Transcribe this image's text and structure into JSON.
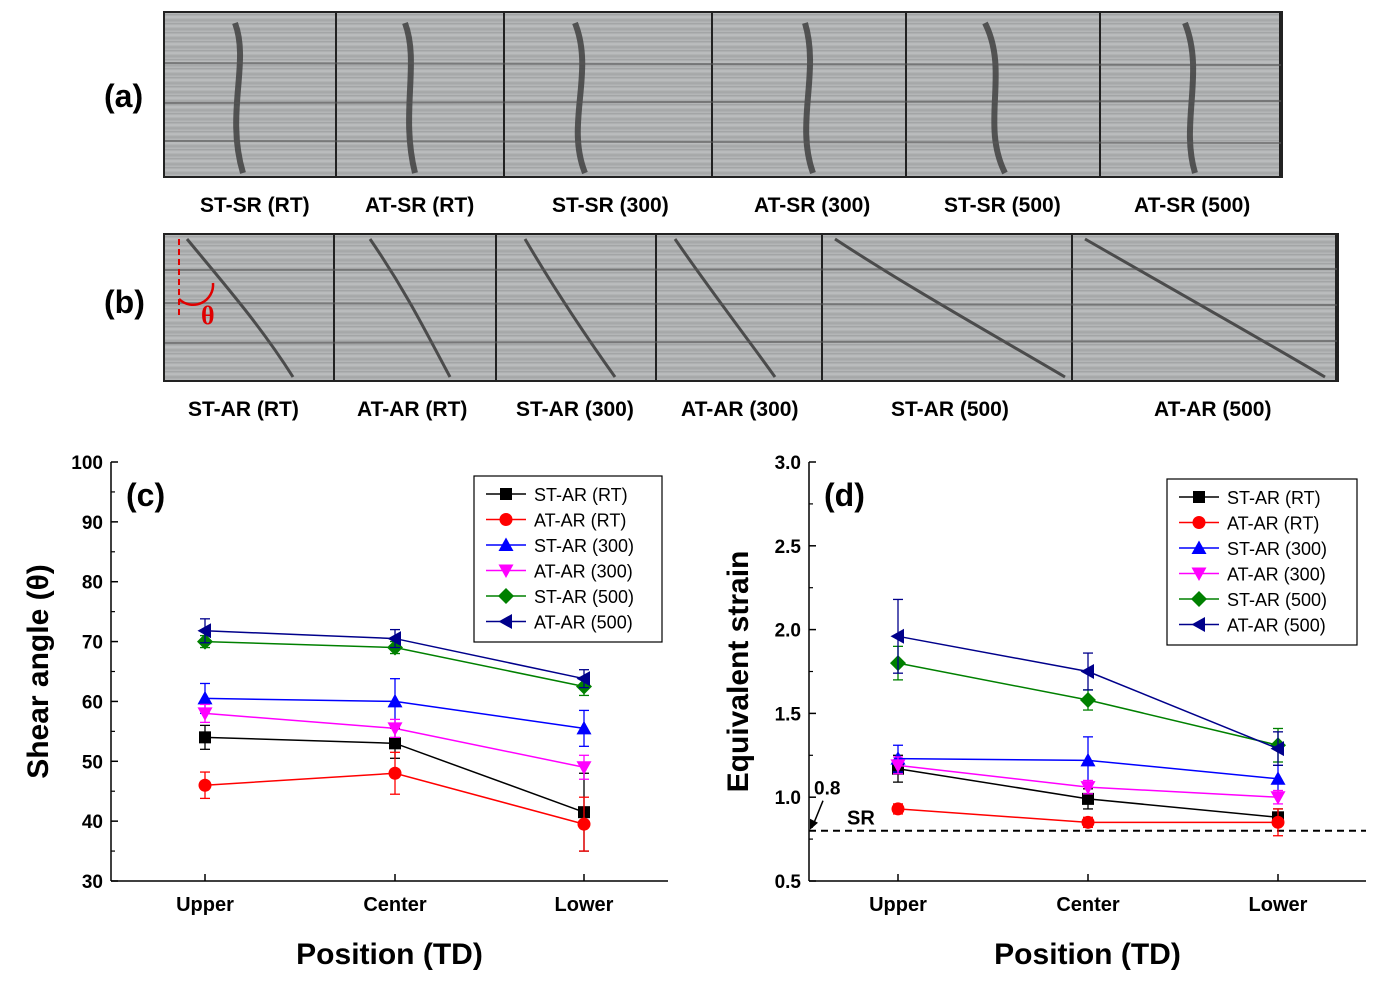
{
  "panel_a": {
    "label": "(a)",
    "captions": [
      "ST-SR (RT)",
      "AT-SR (RT)",
      "ST-SR (300)",
      "AT-SR (300)",
      "ST-SR (500)",
      "AT-SR (500)"
    ]
  },
  "panel_b": {
    "label": "(b)",
    "theta": "θ",
    "captions": [
      "ST-AR (RT)",
      "AT-AR (RT)",
      "ST-AR (300)",
      "AT-AR (300)",
      "ST-AR (500)",
      "AT-AR (500)"
    ]
  },
  "chart_data": [
    {
      "type": "line",
      "panel_label": "(c)",
      "xlabel": "Position (TD)",
      "ylabel": "Shear angle (θ)",
      "categories": [
        "Upper",
        "Center",
        "Lower"
      ],
      "ylim": [
        30,
        100
      ],
      "yticks": [
        30,
        40,
        50,
        60,
        70,
        80,
        90,
        100
      ],
      "series": [
        {
          "name": "ST-AR (RT)",
          "color": "#000000",
          "marker": "square",
          "values": [
            54.0,
            53.0,
            41.5
          ],
          "errors": [
            2.0,
            2.5,
            6.5
          ]
        },
        {
          "name": "AT-AR (RT)",
          "color": "#ff0000",
          "marker": "circle",
          "values": [
            46.0,
            48.0,
            39.5
          ],
          "errors": [
            2.2,
            3.5,
            4.5
          ]
        },
        {
          "name": "ST-AR (300)",
          "color": "#0000ff",
          "marker": "triangle-up",
          "values": [
            60.5,
            60.0,
            55.5
          ],
          "errors": [
            2.5,
            3.8,
            3.0
          ]
        },
        {
          "name": "AT-AR (300)",
          "color": "#ff00ff",
          "marker": "triangle-down",
          "values": [
            58.0,
            55.5,
            49.0
          ],
          "errors": [
            1.5,
            1.5,
            2.0
          ]
        },
        {
          "name": "ST-AR (500)",
          "color": "#008000",
          "marker": "diamond",
          "values": [
            70.0,
            69.0,
            62.5
          ],
          "errors": [
            1.0,
            1.0,
            1.5
          ]
        },
        {
          "name": "AT-AR (500)",
          "color": "#00008b",
          "marker": "triangle-left",
          "values": [
            71.8,
            70.5,
            63.8
          ],
          "errors": [
            2.0,
            1.5,
            1.5
          ]
        }
      ]
    },
    {
      "type": "line",
      "panel_label": "(d)",
      "xlabel": "Position (TD)",
      "ylabel": "Equivalent strain",
      "categories": [
        "Upper",
        "Center",
        "Lower"
      ],
      "ylim": [
        0.5,
        3.0
      ],
      "yticks": [
        "0.5",
        "1.0",
        "1.5",
        "2.0",
        "2.5",
        "3.0"
      ],
      "reference_line": {
        "value": 0.8,
        "value_label": "0.8",
        "label": "SR"
      },
      "series": [
        {
          "name": "ST-AR (RT)",
          "color": "#000000",
          "marker": "square",
          "values": [
            1.17,
            0.99,
            0.88
          ],
          "errors": [
            0.08,
            0.06,
            0.05
          ]
        },
        {
          "name": "AT-AR (RT)",
          "color": "#ff0000",
          "marker": "circle",
          "values": [
            0.93,
            0.85,
            0.85
          ],
          "errors": [
            0.03,
            0.03,
            0.08
          ]
        },
        {
          "name": "ST-AR (300)",
          "color": "#0000ff",
          "marker": "triangle-up",
          "values": [
            1.23,
            1.22,
            1.11
          ],
          "errors": [
            0.08,
            0.14,
            0.08
          ]
        },
        {
          "name": "AT-AR (300)",
          "color": "#ff00ff",
          "marker": "triangle-down",
          "values": [
            1.19,
            1.06,
            1.0
          ],
          "errors": [
            0.05,
            0.04,
            0.04
          ]
        },
        {
          "name": "ST-AR (500)",
          "color": "#008000",
          "marker": "diamond",
          "values": [
            1.8,
            1.58,
            1.31
          ],
          "errors": [
            0.1,
            0.06,
            0.1
          ]
        },
        {
          "name": "AT-AR (500)",
          "color": "#00008b",
          "marker": "triangle-left",
          "values": [
            1.96,
            1.75,
            1.29
          ],
          "errors": [
            0.22,
            0.11,
            0.1
          ]
        }
      ]
    }
  ]
}
